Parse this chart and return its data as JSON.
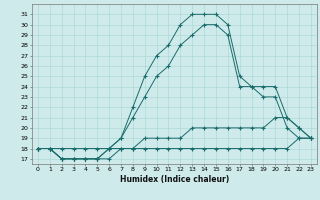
{
  "xlabel": "Humidex (Indice chaleur)",
  "ylabel": "",
  "xlim": [
    -0.5,
    23.5
  ],
  "ylim": [
    16.5,
    32
  ],
  "bg_color": "#ceeaea",
  "line_color": "#1a6b6b",
  "grid_color": "#a8d4d4",
  "yticks": [
    17,
    18,
    19,
    20,
    21,
    22,
    23,
    24,
    25,
    26,
    27,
    28,
    29,
    30,
    31
  ],
  "xticks": [
    0,
    1,
    2,
    3,
    4,
    5,
    6,
    7,
    8,
    9,
    10,
    11,
    12,
    13,
    14,
    15,
    16,
    17,
    18,
    19,
    20,
    21,
    22,
    23
  ],
  "line1_x": [
    0,
    1,
    2,
    3,
    4,
    5,
    6,
    7,
    8,
    9,
    10,
    11,
    12,
    13,
    14,
    15,
    16,
    17,
    18,
    19,
    20,
    21,
    22,
    23
  ],
  "line1_y": [
    18,
    18,
    18,
    18,
    18,
    18,
    18,
    18,
    18,
    18,
    18,
    18,
    18,
    18,
    18,
    18,
    18,
    18,
    18,
    18,
    18,
    18,
    19,
    19
  ],
  "line2_x": [
    0,
    1,
    2,
    3,
    4,
    5,
    6,
    7,
    8,
    9,
    10,
    11,
    12,
    13,
    14,
    15,
    16,
    17,
    18,
    19,
    20,
    21,
    22,
    23
  ],
  "line2_y": [
    18,
    18,
    17,
    17,
    17,
    17,
    17,
    18,
    18,
    19,
    19,
    19,
    19,
    20,
    20,
    20,
    20,
    20,
    20,
    20,
    21,
    21,
    20,
    19
  ],
  "line3_x": [
    0,
    1,
    2,
    3,
    4,
    5,
    6,
    7,
    8,
    9,
    10,
    11,
    12,
    13,
    14,
    15,
    16,
    17,
    18,
    19,
    20,
    21,
    22,
    23
  ],
  "line3_y": [
    18,
    18,
    17,
    17,
    17,
    17,
    18,
    19,
    21,
    23,
    25,
    26,
    28,
    29,
    30,
    30,
    29,
    24,
    24,
    24,
    24,
    21,
    20,
    19
  ],
  "line4_x": [
    0,
    1,
    2,
    3,
    4,
    5,
    6,
    7,
    8,
    9,
    10,
    11,
    12,
    13,
    14,
    15,
    16,
    17,
    18,
    19,
    20,
    21,
    22,
    23
  ],
  "line4_y": [
    18,
    18,
    17,
    17,
    17,
    17,
    18,
    19,
    22,
    25,
    27,
    28,
    30,
    31,
    31,
    31,
    30,
    25,
    24,
    23,
    23,
    20,
    19,
    19
  ]
}
